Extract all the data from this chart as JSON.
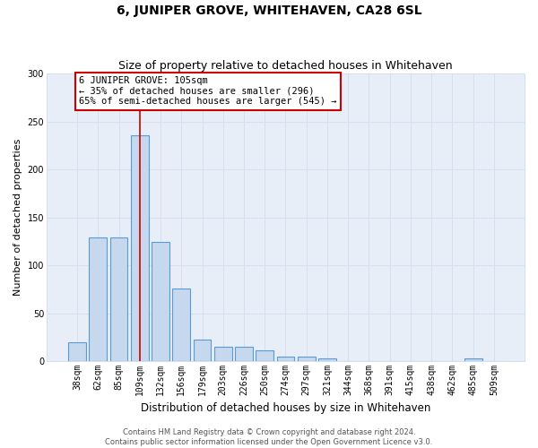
{
  "title": "6, JUNIPER GROVE, WHITEHAVEN, CA28 6SL",
  "subtitle": "Size of property relative to detached houses in Whitehaven",
  "xlabel": "Distribution of detached houses by size in Whitehaven",
  "ylabel": "Number of detached properties",
  "categories": [
    "38sqm",
    "62sqm",
    "85sqm",
    "109sqm",
    "132sqm",
    "156sqm",
    "179sqm",
    "203sqm",
    "226sqm",
    "250sqm",
    "274sqm",
    "297sqm",
    "321sqm",
    "344sqm",
    "368sqm",
    "391sqm",
    "415sqm",
    "438sqm",
    "462sqm",
    "485sqm",
    "509sqm"
  ],
  "values": [
    20,
    129,
    129,
    236,
    124,
    76,
    23,
    15,
    15,
    11,
    5,
    5,
    3,
    0,
    0,
    0,
    0,
    0,
    0,
    3,
    0
  ],
  "bar_color": "#c5d8ed",
  "bar_edge_color": "#5b9bd5",
  "bar_edge_width": 0.8,
  "red_line_index": 3,
  "red_line_color": "#cc0000",
  "annotation_text": "6 JUNIPER GROVE: 105sqm\n← 35% of detached houses are smaller (296)\n65% of semi-detached houses are larger (545) →",
  "annotation_box_color": "#ffffff",
  "annotation_box_edge_color": "#cc0000",
  "annotation_fontsize": 7.5,
  "ylim": [
    0,
    300
  ],
  "yticks": [
    0,
    50,
    100,
    150,
    200,
    250,
    300
  ],
  "grid_color": "#d4dff0",
  "bg_color": "#e8eef8",
  "footer_line1": "Contains HM Land Registry data © Crown copyright and database right 2024.",
  "footer_line2": "Contains public sector information licensed under the Open Government Licence v3.0.",
  "title_fontsize": 10,
  "subtitle_fontsize": 9,
  "xlabel_fontsize": 8.5,
  "ylabel_fontsize": 8,
  "tick_fontsize": 7,
  "footer_fontsize": 6
}
